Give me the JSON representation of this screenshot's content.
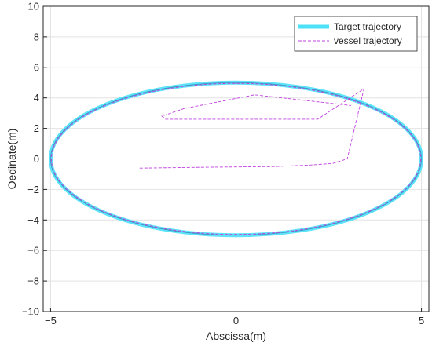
{
  "chart_data": {
    "type": "line",
    "title": "",
    "xlabel": "Abscissa(m)",
    "ylabel": "Oedinate(m)",
    "xlim": [
      -5.2,
      5.2
    ],
    "ylim": [
      -10,
      10
    ],
    "xticks": [
      -5,
      0,
      5
    ],
    "yticks": [
      -10,
      -8,
      -6,
      -4,
      -2,
      0,
      2,
      4,
      6,
      8,
      10
    ],
    "grid": true,
    "legend_position": "top-right",
    "series": [
      {
        "name": "Target trajectory",
        "color": "#4de1f7",
        "style": "solid-thick",
        "shape": "ellipse",
        "center": [
          0,
          0
        ],
        "semi_axis_x": 5,
        "semi_axis_y": 5
      },
      {
        "name": "vessel trajectory",
        "color": "#c040e0",
        "style": "dashed",
        "transient_x": [
          -2.6,
          -1.0,
          1.0,
          2.0,
          2.6,
          3.0,
          3.45,
          2.2,
          1.6,
          1.3,
          -1.0,
          -1.9,
          -2.0,
          -1.4,
          0.5,
          3.1
        ],
        "transient_y": [
          -0.6,
          -0.55,
          -0.5,
          -0.4,
          -0.3,
          0.0,
          4.6,
          2.6,
          2.6,
          2.6,
          2.6,
          2.6,
          2.8,
          3.3,
          4.2,
          3.5
        ],
        "steady_state": "ellipse center [0,0], semi-axes 5 x 5 (follows target)"
      }
    ]
  }
}
